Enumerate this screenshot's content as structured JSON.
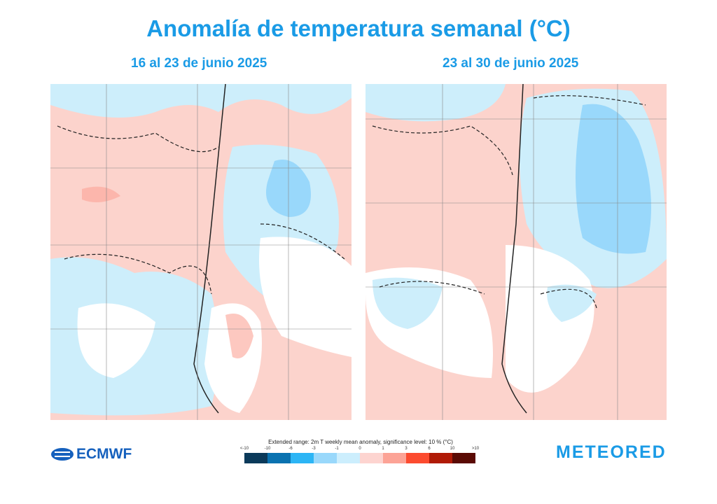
{
  "title": "Anomalía de temperatura semanal (°C)",
  "maps": [
    {
      "subtitle": "16 al 23 de junio 2025"
    },
    {
      "subtitle": "23 al 30 de junio 2025"
    }
  ],
  "legend": {
    "title": "Extended range: 2m T weekly mean anomaly, significance level: 10 % (°C)",
    "ticks": [
      "<-10",
      "-10",
      "-6",
      "-3",
      "-1",
      "0",
      "1",
      "3",
      "6",
      "10",
      ">10"
    ],
    "colors": [
      "#0b3a5a",
      "#0a72b0",
      "#2cb5f5",
      "#99d8fb",
      "#cceefd",
      "#fdd4d0",
      "#fca396",
      "#fc4b2f",
      "#b01a06",
      "#5a0a04"
    ]
  },
  "logos": {
    "ecmwf": "ECMWF",
    "meteored": "METEORED"
  }
}
